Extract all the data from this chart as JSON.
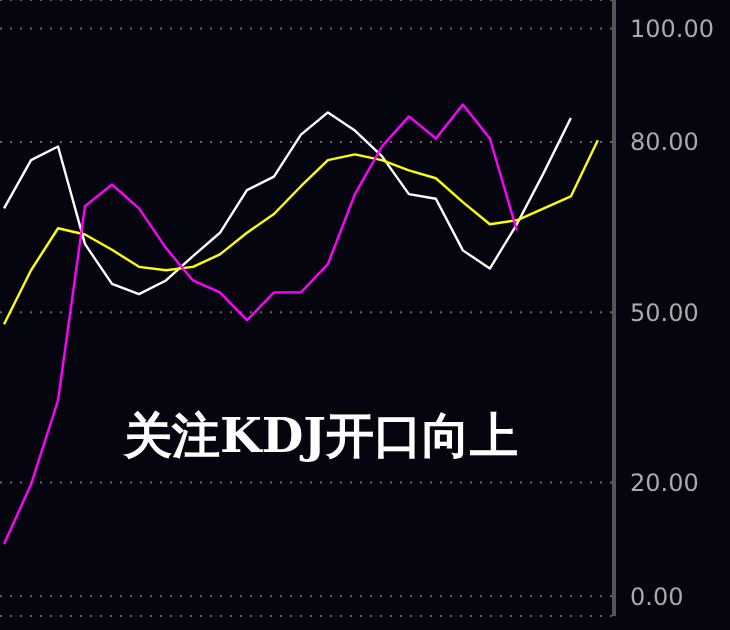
{
  "chart_data": {
    "type": "line",
    "categories": [
      null,
      null,
      null,
      null,
      null,
      null,
      null,
      null,
      null,
      null,
      null,
      null,
      null,
      null,
      null,
      null,
      null,
      null,
      null,
      null,
      null,
      null,
      null
    ],
    "series": [
      {
        "color": "#ffffff",
        "values": [
          68.3,
          76.8,
          79.2,
          62,
          55,
          53.2,
          55.6,
          59.9,
          64,
          71.5,
          73.9,
          81.3,
          85.2,
          82,
          77.5,
          70.8,
          70,
          60.9,
          57.7,
          65.5,
          74.6,
          84.2,
          null
        ]
      },
      {
        "color": "#ffff00",
        "values": [
          47.9,
          57.4,
          64.8,
          63.7,
          61,
          58,
          57.4,
          58,
          60.2,
          64,
          67.3,
          72.2,
          76.8,
          77.8,
          76.8,
          75,
          73.6,
          69.4,
          65.5,
          66.2,
          68.3,
          70.4,
          80.3
        ]
      },
      {
        "color": "#ff00ff",
        "values": [
          9.2,
          19.7,
          34.5,
          68.7,
          72.5,
          68.3,
          61.3,
          55.6,
          53.5,
          48.6,
          53.5,
          53.5,
          58.5,
          70.8,
          79.2,
          84.5,
          80.6,
          86.6,
          80.6,
          64.4,
          null,
          null,
          null
        ]
      }
    ],
    "ylim": [
      -3.5,
      105
    ],
    "yticks": [
      {
        "value": 0,
        "label": "0.00"
      },
      {
        "value": 20,
        "label": "20.00"
      },
      {
        "value": 50,
        "label": "50.00"
      },
      {
        "value": 80,
        "label": "80.00"
      },
      {
        "value": 100,
        "label": "100.00"
      }
    ],
    "grid": "y",
    "tick_labels": "y",
    "marker": "none",
    "line_style": "solid",
    "annotations": [
      "关注KDJ开口向上"
    ]
  }
}
